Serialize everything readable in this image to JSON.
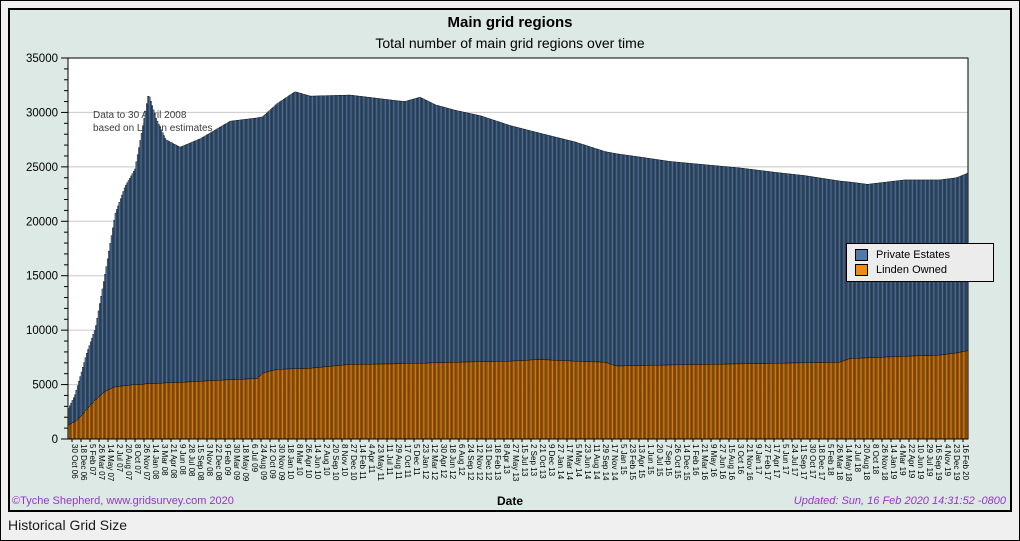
{
  "page": {
    "caption": "Historical Grid Size",
    "background": "#f0f0f0"
  },
  "chart": {
    "title": "Main grid regions",
    "subtitle": "Total number of main grid regions over time",
    "xlabel": "Date",
    "annotation": {
      "line1": "Data to 30 April 2008",
      "line2": "based on Linden estimates"
    },
    "legend": [
      {
        "label": "Private Estates",
        "color": "#527aa8"
      },
      {
        "label": "Linden Owned",
        "color": "#f08a14"
      }
    ],
    "footer_left": "©Tyche Shepherd, www.gridsurvey.com 2020",
    "footer_right": "Updated: Sun, 16 Feb 2020 14:31:52 -0800",
    "colors": {
      "chart_bg": "#dce9e4",
      "plot_bg": "#ffffff",
      "grid": "#c9c9c9",
      "axis": "#000000",
      "private_estates": "#527aa8",
      "linden_owned": "#f08a14",
      "bar_outline": "#000000",
      "link": "#9933cc",
      "annotation_text": "#3c3c3c"
    }
  },
  "chart_data": {
    "type": "bar",
    "stacked": true,
    "title": "Main grid regions",
    "subtitle": "Total number of main grid regions over time",
    "xlabel": "Date",
    "ylabel": "",
    "ylim": [
      0,
      35000
    ],
    "yticks": [
      0,
      5000,
      10000,
      15000,
      20000,
      25000,
      30000,
      35000
    ],
    "y_minor_step": 1000,
    "grid": "horizontal-major",
    "legend_position": "center-right",
    "bar_count": 690,
    "x_range_note": "weekly survey bars from 30 Oct 2006 to 16 Feb 2020",
    "x_tick_labels": [
      "30 Oct 06",
      "18 Dec 06",
      "5 Feb 07",
      "26 Mar 07",
      "14 May 07",
      "2 Jul 07",
      "20 Aug 07",
      "8 Oct 07",
      "26 Nov 07",
      "14 Jan 08",
      "3 Mar 08",
      "21 Apr 08",
      "9 Jun 08",
      "28 Jul 08",
      "15 Sep 08",
      "3 Nov 08",
      "22 Dec 08",
      "9 Feb 09",
      "30 Mar 09",
      "18 May 09",
      "6 Jul 09",
      "24 Aug 09",
      "12 Oct 09",
      "30 Nov 09",
      "18 Jan 10",
      "8 Mar 10",
      "26 Apr 10",
      "14 Jun 10",
      "2 Aug 10",
      "20 Sep 10",
      "8 Nov 10",
      "27 Dec 10",
      "14 Feb 11",
      "4 Apr 11",
      "23 May 11",
      "11 Jul 11",
      "29 Aug 11",
      "17 Oct 11",
      "5 Dec 11",
      "23 Jan 12",
      "12 Mar 12",
      "30 Apr 12",
      "18 Jun 12",
      "6 Aug 12",
      "24 Sep 12",
      "12 Nov 12",
      "31 Dec 12",
      "18 Feb 13",
      "8 Apr 13",
      "27 May 13",
      "15 Jul 13",
      "2 Sep 13",
      "21 Oct 13",
      "9 Dec 13",
      "27 Jan 14",
      "17 Mar 14",
      "5 May 14",
      "23 Jun 14",
      "11 Aug 14",
      "29 Sep 14",
      "17 Nov 14",
      "5 Jan 15",
      "23 Feb 15",
      "13 Apr 15",
      "1 Jun 15",
      "20 Jul 15",
      "7 Sep 15",
      "26 Oct 15",
      "14 Dec 15",
      "1 Feb 16",
      "21 Mar 16",
      "9 May 16",
      "27 Jun 16",
      "15 Aug 16",
      "3 Oct 16",
      "21 Nov 16",
      "9 Jan 17",
      "27 Feb 17",
      "17 Apr 17",
      "5 Jun 17",
      "24 Jul 17",
      "11 Sep 17",
      "30 Oct 17",
      "18 Dec 17",
      "5 Feb 18",
      "26 Mar 18",
      "14 May 18",
      "2 Jul 18",
      "20 Aug 18",
      "8 Oct 18",
      "26 Nov 18",
      "14 Jan 19",
      "4 Mar 19",
      "22 Apr 19",
      "10 Jun 19",
      "29 Jul 19",
      "16 Sep 19",
      "4 Nov 19",
      "23 Dec 19",
      "16 Feb 20"
    ],
    "series_note": "control points sampled from the figure; t = fraction of x-axis span; private_estates = total - linden_owned",
    "series": [
      {
        "name": "Linden Owned",
        "color": "#f08a14",
        "t": [
          0,
          0.007,
          0.014,
          0.02,
          0.03,
          0.041,
          0.052,
          0.063,
          0.074,
          0.08,
          0.089,
          0.097,
          0.108,
          0.124,
          0.147,
          0.18,
          0.21,
          0.216,
          0.232,
          0.252,
          0.269,
          0.313,
          0.363,
          0.374,
          0.391,
          0.408,
          0.43,
          0.458,
          0.491,
          0.524,
          0.563,
          0.597,
          0.61,
          0.636,
          0.669,
          0.708,
          0.747,
          0.786,
          0.819,
          0.858,
          0.87,
          0.889,
          0.93,
          0.969,
          0.988,
          1.0
        ],
        "values": [
          1300,
          1600,
          2100,
          2700,
          3600,
          4400,
          4800,
          4900,
          5000,
          5000,
          5100,
          5100,
          5150,
          5200,
          5300,
          5450,
          5550,
          6050,
          6400,
          6450,
          6500,
          6850,
          6900,
          6950,
          6950,
          7000,
          7050,
          7100,
          7150,
          7300,
          7150,
          7050,
          6700,
          6750,
          6800,
          6850,
          6900,
          6950,
          7000,
          7050,
          7400,
          7450,
          7600,
          7700,
          7900,
          8100
        ]
      },
      {
        "name": "Total (stack top, Private Estates + Linden Owned)",
        "color": "#527aa8",
        "t": [
          0,
          0.007,
          0.014,
          0.02,
          0.03,
          0.041,
          0.052,
          0.063,
          0.074,
          0.08,
          0.089,
          0.097,
          0.108,
          0.124,
          0.147,
          0.18,
          0.21,
          0.216,
          0.232,
          0.252,
          0.269,
          0.313,
          0.363,
          0.374,
          0.391,
          0.408,
          0.43,
          0.458,
          0.491,
          0.524,
          0.563,
          0.597,
          0.61,
          0.636,
          0.669,
          0.708,
          0.747,
          0.786,
          0.819,
          0.858,
          0.87,
          0.889,
          0.93,
          0.969,
          0.988,
          1.0
        ],
        "values": [
          2800,
          4000,
          6000,
          7800,
          10200,
          15300,
          20700,
          23200,
          24800,
          27500,
          31700,
          29500,
          27500,
          26800,
          27600,
          29200,
          29500,
          29600,
          30800,
          31900,
          31500,
          31600,
          31100,
          31000,
          31400,
          30700,
          30200,
          29700,
          28800,
          28100,
          27300,
          26400,
          26200,
          25900,
          25500,
          25200,
          24900,
          24500,
          24200,
          23700,
          23600,
          23400,
          23800,
          23800,
          24000,
          24400
        ]
      }
    ]
  }
}
